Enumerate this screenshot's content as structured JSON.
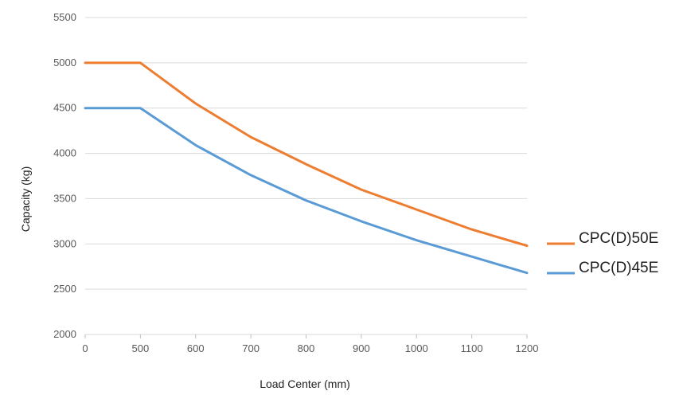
{
  "chart_data": {
    "type": "line",
    "xlabel": "Load Center (mm)",
    "ylabel": "Capacity (kg)",
    "categories": [
      "0",
      "500",
      "600",
      "700",
      "800",
      "900",
      "1000",
      "1100",
      "1200"
    ],
    "ylim": [
      2000,
      5500
    ],
    "yticks": [
      2000,
      2500,
      3000,
      3500,
      4000,
      4500,
      5000,
      5500
    ],
    "grid": true,
    "legend_position": "right",
    "series": [
      {
        "name": "CPC(D)50E",
        "color": "#ed7d31",
        "values": [
          5000,
          5000,
          4550,
          4180,
          3880,
          3600,
          3380,
          3160,
          2980
        ]
      },
      {
        "name": "CPC(D)45E",
        "color": "#5b9bd5",
        "values": [
          4500,
          4500,
          4090,
          3760,
          3480,
          3250,
          3040,
          2860,
          2680
        ]
      }
    ]
  }
}
